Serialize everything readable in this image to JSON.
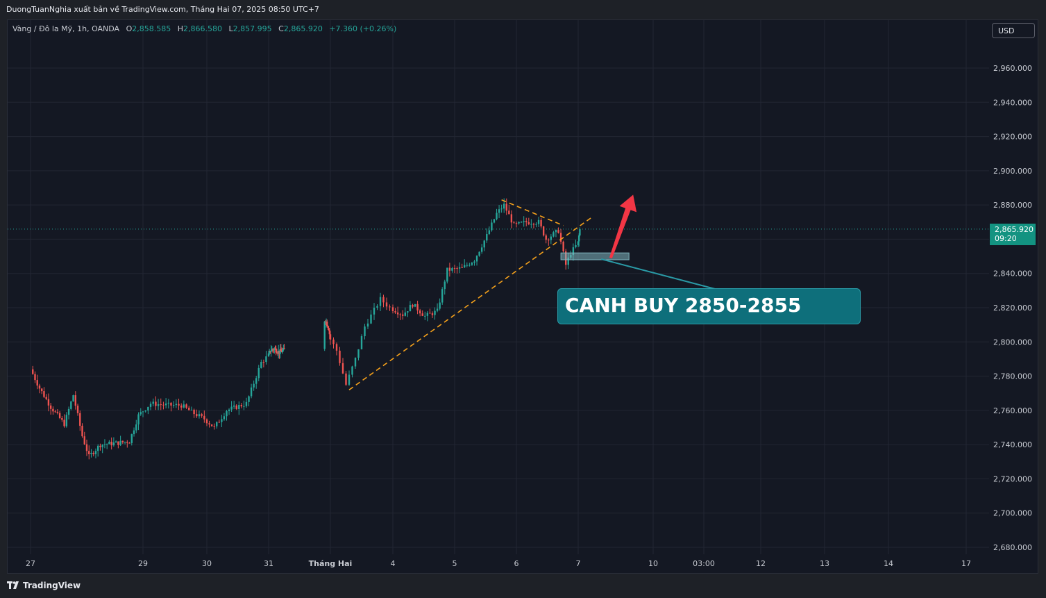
{
  "header": {
    "published_by": "DuongTuanNghia xuất bản về TradingView.com, Tháng Hai 07, 2025 08:50 UTC+7"
  },
  "legend": {
    "symbol": "Vàng / Đô la Mỹ, 1h, OANDA",
    "open_key": "O",
    "open": "2,858.585",
    "high_key": "H",
    "high": "2,866.580",
    "low_key": "L",
    "low": "2,857.995",
    "close_key": "C",
    "close": "2,865.920",
    "change": "+7.360 (+0.26%)"
  },
  "currency_button": "USD",
  "price_tag": {
    "price": "2,865.920",
    "countdown": "09:20"
  },
  "annotation": {
    "text": "CANH BUY 2850-2855"
  },
  "footer": {
    "brand": "TradingView"
  },
  "colors": {
    "up": "#26a69a",
    "down": "#ef5350",
    "trendline": "#f7a21b",
    "zone": "#7fb6bf",
    "arrow": "#f23645",
    "callout": "#0e6f7b"
  },
  "chart_data": {
    "type": "candlestick",
    "title": "",
    "timeframe": "1h",
    "ylim": [
      2672,
      2980
    ],
    "y_ticks": [
      2680,
      2700,
      2720,
      2740,
      2760,
      2780,
      2800,
      2820,
      2840,
      2860,
      2880,
      2900,
      2920,
      2940,
      2960
    ],
    "x_ticks": [
      "27",
      "29",
      "30",
      "31",
      "Tháng Hai",
      "4",
      "5",
      "6",
      "7",
      "10",
      "03:00",
      "12",
      "13",
      "14",
      "17"
    ],
    "last_price": 2865.92,
    "price_path": [
      [
        "27 Jan 00:00",
        2784
      ],
      [
        "27 Jan 04:00",
        2773
      ],
      [
        "27 Jan 09:00",
        2762
      ],
      [
        "27 Jan 15:00",
        2752
      ],
      [
        "27 Jan 19:00",
        2769
      ],
      [
        "27 Jan 23:00",
        2745
      ],
      [
        "28 Jan 02:00",
        2733
      ],
      [
        "28 Jan 07:00",
        2740
      ],
      [
        "28 Jan 15:00",
        2741
      ],
      [
        "28 Jan 20:00",
        2742
      ],
      [
        "29 Jan 00:00",
        2757
      ],
      [
        "29 Jan 05:00",
        2764
      ],
      [
        "29 Jan 12:00",
        2763
      ],
      [
        "29 Jan 17:00",
        2763
      ],
      [
        "29 Jan 21:00",
        2759
      ],
      [
        "30 Jan 02:00",
        2755
      ],
      [
        "30 Jan 06:00",
        2750
      ],
      [
        "30 Jan 11:00",
        2760
      ],
      [
        "30 Jan 19:00",
        2764
      ],
      [
        "31 Jan 01:00",
        2788
      ],
      [
        "31 Jan 06:00",
        2795
      ],
      [
        "31 Jan 11:00",
        2796
      ],
      [
        "31 Jan 17:00",
        2794
      ],
      [
        "31 Jan 22:00",
        2795
      ],
      [
        "03 Feb 01:00",
        2813
      ],
      [
        "03 Feb 05:00",
        2808
      ],
      [
        "03 Feb 09:00",
        2795
      ],
      [
        "03 Feb 12:00",
        2775
      ],
      [
        "03 Feb 15:00",
        2790
      ],
      [
        "03 Feb 18:00",
        2809
      ],
      [
        "03 Feb 23:00",
        2825
      ],
      [
        "04 Feb 02:00",
        2820
      ],
      [
        "04 Feb 07:00",
        2816
      ],
      [
        "04 Feb 11:00",
        2822
      ],
      [
        "04 Feb 16:00",
        2815
      ],
      [
        "04 Feb 21:00",
        2818
      ],
      [
        "05 Feb 01:00",
        2842
      ],
      [
        "05 Feb 07:00",
        2843
      ],
      [
        "05 Feb 12:00",
        2848
      ],
      [
        "05 Feb 17:00",
        2862
      ],
      [
        "05 Feb 21:00",
        2875
      ],
      [
        "06 Feb 00:00",
        2880
      ],
      [
        "06 Feb 04:00",
        2868
      ],
      [
        "06 Feb 09:00",
        2870
      ],
      [
        "06 Feb 14:00",
        2870
      ],
      [
        "06 Feb 17:00",
        2860
      ],
      [
        "06 Feb 22:00",
        2865
      ],
      [
        "07 Feb 01:00",
        2845
      ],
      [
        "07 Feb 03:00",
        2852
      ],
      [
        "07 Feb 06:00",
        2858
      ],
      [
        "07 Feb 08:00",
        2865.92
      ]
    ],
    "trendlines": [
      {
        "name": "",
        "from": [
          "03 Feb 13:00",
          2772
        ],
        "to": [
          "07 Feb 23:00",
          2873
        ]
      },
      {
        "name": "",
        "from": [
          "05 Feb 23:00",
          2883
        ],
        "to": [
          "07 Feb 00:00",
          2868
        ]
      }
    ],
    "zone": {
      "from": "06 Feb 23:00",
      "to": "09 Feb 19:00",
      "low": 2848,
      "high": 2852
    },
    "arrow": {
      "from": [
        "08 Feb 21:00",
        2849
      ],
      "to": [
        "10 Feb 00:00",
        2886
      ]
    }
  }
}
